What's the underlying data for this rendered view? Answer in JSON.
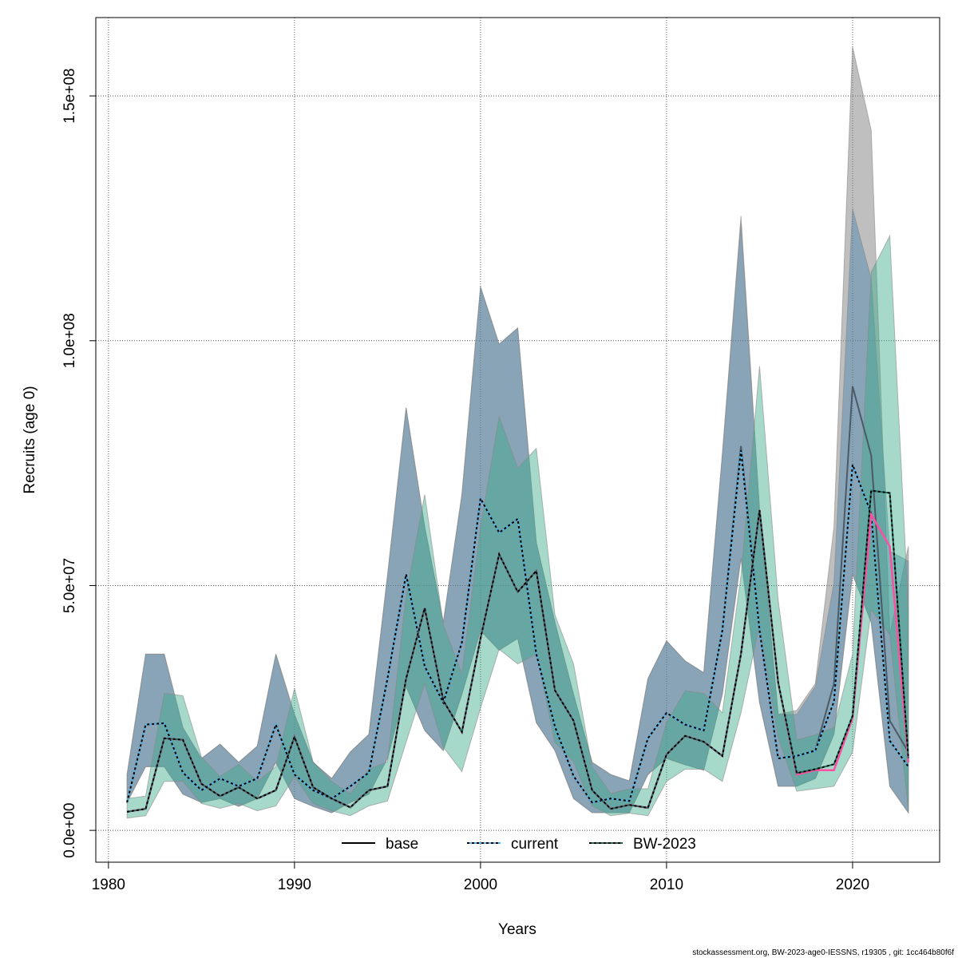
{
  "chart_data": {
    "type": "line",
    "title": "",
    "xlabel": "Years",
    "ylabel": "Recruits (age 0)",
    "xlim": [
      1979.32,
      2024.68
    ],
    "ylim": [
      -6500000.0,
      166000000.0
    ],
    "grid": true,
    "x_ticks": [
      1980,
      1990,
      2000,
      2010,
      2020
    ],
    "x_tick_labels": [
      "1980",
      "1990",
      "2000",
      "2010",
      "2020"
    ],
    "y_ticks": [
      0,
      50000000,
      100000000,
      150000000
    ],
    "y_tick_labels": [
      "0.0e+00",
      "5.0e+07",
      "1.0e+08",
      "1.5e+08"
    ],
    "value_unit_multiplier": 1000000,
    "x": [
      1981,
      1982,
      1983,
      1984,
      1985,
      1986,
      1987,
      1988,
      1989,
      1990,
      1991,
      1992,
      1993,
      1994,
      1995,
      1996,
      1997,
      1998,
      1999,
      2000,
      2001,
      2002,
      2003,
      2004,
      2005,
      2006,
      2007,
      2008,
      2009,
      2010,
      2011,
      2012,
      2013,
      2014,
      2015,
      2016,
      2017,
      2018,
      2019,
      2020,
      2021,
      2022,
      2023
    ],
    "series": [
      {
        "name": "base",
        "legend": true,
        "color": "#000000",
        "band_color": "#808080",
        "values": [
          5.7,
          21.6,
          21.9,
          11.8,
          8.2,
          10.6,
          9,
          10.6,
          21.6,
          11.4,
          8.2,
          6.5,
          9,
          11.8,
          31,
          52.3,
          33.5,
          26.1,
          38.4,
          67.8,
          60.8,
          63.6,
          36,
          21.2,
          11.1,
          5.7,
          6.5,
          6,
          18.8,
          24,
          21.6,
          20.4,
          40.8,
          78.5,
          40.8,
          14.7,
          15.2,
          16.3,
          30,
          90.7,
          76.6,
          22.4,
          16
        ],
        "upper": [
          11.4,
          36,
          36,
          21,
          14.7,
          17.6,
          13.9,
          17.2,
          36,
          23.7,
          13.9,
          10.6,
          16,
          19.6,
          52,
          86.3,
          62,
          42.5,
          68.6,
          111,
          99.3,
          102.6,
          58.8,
          42.5,
          27.8,
          13.9,
          11.4,
          10.1,
          31,
          38.7,
          34.6,
          32.2,
          76.8,
          125.5,
          65.4,
          23.7,
          24.5,
          30,
          62,
          160,
          143,
          40,
          58
        ],
        "lower": [
          5.7,
          13,
          13,
          7.4,
          5.7,
          6.5,
          4.9,
          6.5,
          13.9,
          6.5,
          4.9,
          3.6,
          5.7,
          7.4,
          14.7,
          29.4,
          20.4,
          16.3,
          27.8,
          40.8,
          36.8,
          39.2,
          22,
          16.3,
          6.5,
          3.6,
          3.6,
          3.6,
          11.4,
          14.7,
          13.4,
          12.3,
          27.8,
          55.6,
          26.1,
          9,
          9,
          10.6,
          19.6,
          52.3,
          42.5,
          9,
          3.6
        ]
      },
      {
        "name": "current",
        "legend": true,
        "color": "#56b4e9",
        "band_color": "#4682aa",
        "values": [
          5.7,
          21.6,
          21.9,
          11.8,
          8.2,
          10.6,
          9,
          10.6,
          21.6,
          11.4,
          8.2,
          6.5,
          9,
          11.8,
          31,
          52.3,
          33.5,
          26.1,
          38.4,
          67.8,
          60.8,
          63.6,
          36,
          21.2,
          11.1,
          5.7,
          6.5,
          6,
          18.8,
          24,
          21.6,
          20.4,
          40.8,
          77.6,
          40.8,
          14.7,
          15.2,
          16.3,
          26.3,
          74.7,
          64.7,
          18.3,
          13
        ],
        "upper": [
          11.4,
          36,
          36,
          21,
          14.7,
          17.6,
          13.9,
          17.2,
          36,
          23.7,
          13.9,
          10.6,
          16,
          19.6,
          52,
          86.3,
          62,
          42.5,
          68.6,
          111,
          99.3,
          102.6,
          58.8,
          42.5,
          27.8,
          13.9,
          11.4,
          10.1,
          31,
          38.7,
          34.6,
          32.2,
          76.8,
          124,
          65.4,
          23.7,
          23.7,
          29.4,
          50.7,
          127,
          112.7,
          57,
          55
        ],
        "lower": [
          5.7,
          13,
          13,
          7.4,
          5.7,
          6.5,
          4.9,
          6.5,
          13.9,
          6.5,
          4.9,
          3.6,
          5.7,
          7.4,
          14.7,
          29.4,
          20.4,
          16.3,
          27.8,
          40.8,
          36.8,
          39.2,
          22,
          16.3,
          6.5,
          3.6,
          3.6,
          3.6,
          11.4,
          14.7,
          13.4,
          12.3,
          27.8,
          55.6,
          26.1,
          9,
          9,
          10.6,
          19.6,
          52.3,
          42.5,
          9,
          3.6
        ]
      },
      {
        "name": "BW-2023",
        "legend": true,
        "color": "#1a6b5a",
        "band_color": "#3cab8c",
        "values": [
          3.8,
          4.4,
          18.8,
          18.5,
          9.5,
          7,
          8.8,
          6.5,
          8.2,
          19.1,
          8.8,
          6.5,
          4.7,
          8.2,
          9,
          31,
          45.4,
          26.5,
          20.1,
          39.2,
          56.4,
          48.7,
          53,
          28.6,
          22.4,
          8.2,
          4.4,
          5.2,
          4.6,
          15.5,
          19.3,
          18.1,
          15.2,
          36,
          65.4,
          30.2,
          11.7,
          12.5,
          13.5,
          23.4,
          69.4,
          68.9,
          14.7
        ],
        "upper": [
          6.5,
          7,
          28,
          27.5,
          15,
          11,
          13.5,
          10,
          13,
          29,
          14,
          10,
          7.5,
          12.5,
          14,
          48,
          68.6,
          42,
          32,
          62,
          84.5,
          74,
          78,
          44,
          34,
          13,
          7.5,
          8.5,
          8.5,
          22,
          28.5,
          28,
          24,
          52,
          94.8,
          47,
          18.5,
          19.5,
          21,
          36,
          114,
          121.4,
          45
        ],
        "lower": [
          2.5,
          3,
          10,
          10,
          5.5,
          4.5,
          5.5,
          4,
          5,
          11,
          5.5,
          4,
          3,
          5,
          6,
          18,
          30,
          17,
          12,
          25,
          37,
          34,
          36,
          18,
          14,
          5,
          3,
          3.5,
          3,
          10,
          12.5,
          12.5,
          10,
          24,
          42,
          19,
          8,
          8.5,
          9,
          16,
          45,
          40,
          4
        ]
      },
      {
        "name": "",
        "legend": false,
        "color": "#ff4fa3",
        "values": [
          3.8,
          4.4,
          18.8,
          18.5,
          9.5,
          7,
          8.8,
          6.5,
          8.2,
          19.1,
          8.8,
          6.5,
          4.7,
          8.2,
          9,
          31,
          45.4,
          26.5,
          20.1,
          39.2,
          56.4,
          48.7,
          53,
          28.6,
          22.4,
          8.2,
          4.4,
          5.2,
          4.6,
          15.5,
          19.3,
          18.1,
          15.2,
          36,
          65.4,
          30.2,
          11.4,
          12.3,
          12.3,
          22.9,
          64.5,
          58,
          13.9
        ]
      }
    ],
    "legend": {
      "placement": "bottom-center",
      "entries": [
        "base",
        "current",
        "BW-2023"
      ]
    }
  },
  "footer": "stockassessment.org, BW-2023-age0-IESSNS, r19305 , git: 1cc464b80f6f"
}
